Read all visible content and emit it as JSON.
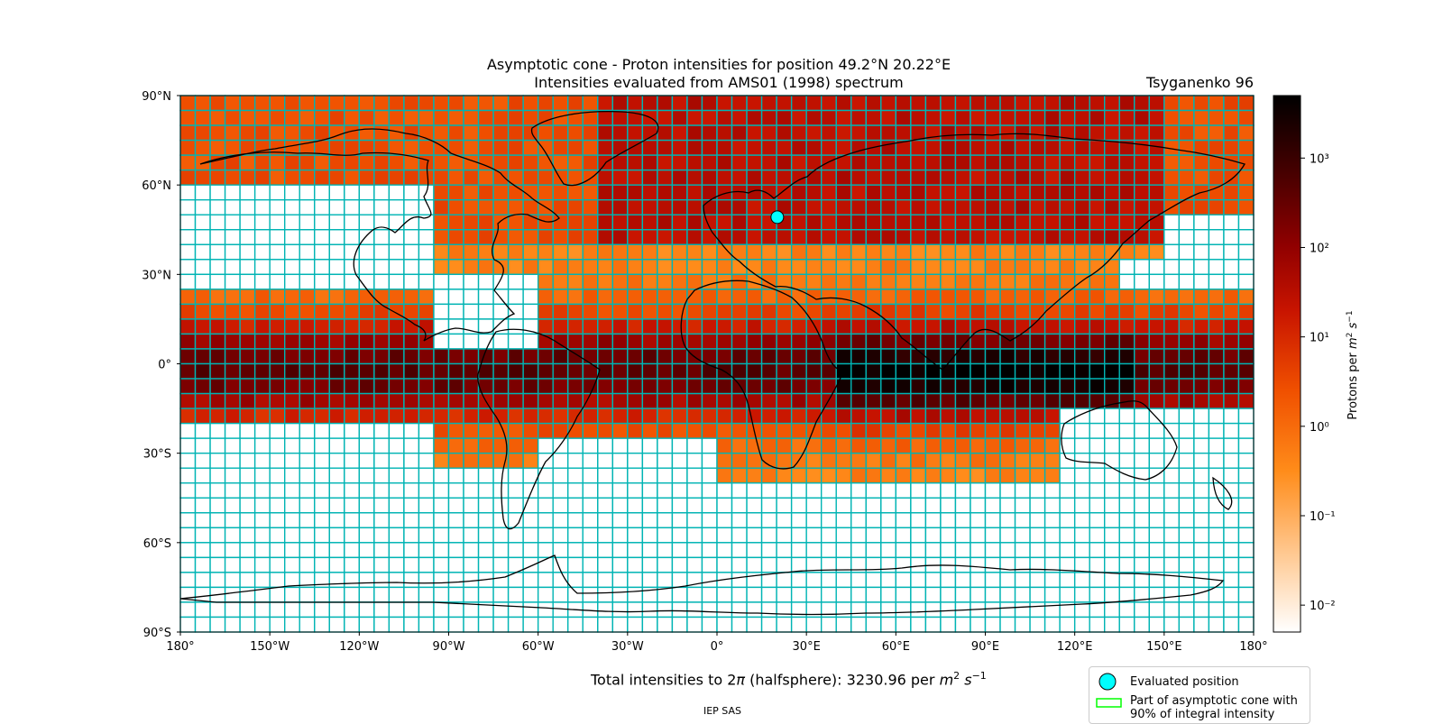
{
  "chart_data": {
    "type": "heatmap",
    "title": "Asymptotic cone - Proton intensities for position 49.2°N 20.22°E",
    "subtitle": "Intensities evaluated from AMS01 (1998) spectrum",
    "model_label": "Tsyganenko 96",
    "x_ticks": [
      "180°",
      "150°W",
      "120°W",
      "90°W",
      "60°W",
      "30°W",
      "0°",
      "30°E",
      "60°E",
      "90°E",
      "120°E",
      "150°E",
      "180°"
    ],
    "y_ticks": [
      "90°N",
      "60°N",
      "30°N",
      "0°",
      "30°S",
      "60°S",
      "90°S"
    ],
    "xlim": [
      -180,
      180
    ],
    "ylim": [
      -90,
      90
    ],
    "grid_step_lon": 5,
    "grid_step_lat": 5,
    "colorbar": {
      "label": "Protons per m² s⁻¹",
      "scale": "log",
      "range": [
        0.005,
        5000
      ],
      "tick_labels": [
        "10³",
        "10²",
        "10¹",
        "10⁰",
        "10⁻¹",
        "10⁻²"
      ],
      "tick_values": [
        1000,
        100,
        10,
        1,
        0.1,
        0.01
      ],
      "colormap": "gist_heat_r"
    },
    "evaluated_position": {
      "lat": 49.2,
      "lon": 20.22
    },
    "total_text": "Total intensities to 2π (halfsphere): 3230.96 per m² s⁻¹",
    "total_value": 3230.96,
    "legend": [
      {
        "label": "Evaluated position",
        "marker": "circle",
        "color": "#00ffff"
      },
      {
        "label": "Part of asymptotic cone with 90% of integral intensity",
        "marker": "rectangle",
        "color": "#00ff00"
      }
    ],
    "cell_border_color": "#00b4b4"
  },
  "labels": {
    "title_line1": "Asymptotic cone - Proton intensities for position 49.2°N 20.22°E",
    "title_line2": "Intensities evaluated from AMS01 (1998) spectrum",
    "model": "Tsyganenko 96",
    "total_prefix": "Total intensities to 2",
    "total_pi": "π",
    "total_mid": " (halfsphere): 3230.96 per ",
    "total_m": "m",
    "total_m_exp": "2",
    "total_s": "s",
    "total_s_exp": "−1",
    "cbar_label_prefix": "Protons per ",
    "cbar_m": "m",
    "cbar_m_exp": "2",
    "cbar_s": "s",
    "cbar_s_exp": "−1",
    "legend_item1": "Evaluated position",
    "legend_item2_line1": "Part of asymptotic cone with",
    "legend_item2_line2": "90% of integral intensity",
    "footer": "IEP SAS"
  }
}
